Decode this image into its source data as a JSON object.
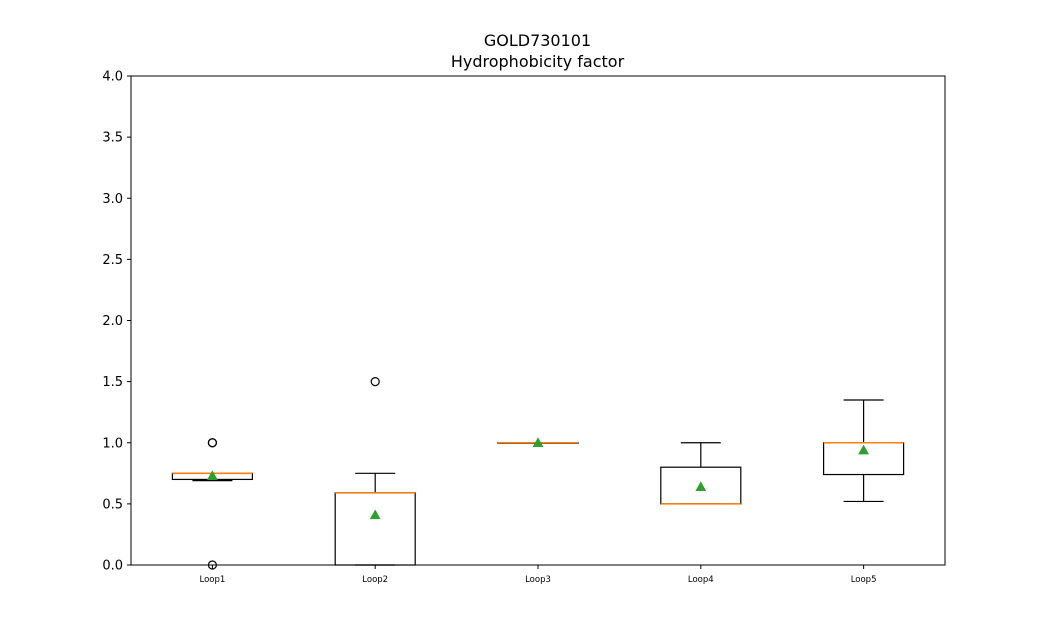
{
  "chart_data": {
    "type": "box",
    "title": "GOLD730101",
    "subtitle": "Hydrophobicity factor",
    "xlabel": "",
    "ylabel": "",
    "ylim": [
      0,
      4.0
    ],
    "yticks": [
      "0.0",
      "0.5",
      "1.0",
      "1.5",
      "2.0",
      "2.5",
      "3.0",
      "3.5",
      "4.0"
    ],
    "categories": [
      "Loop1",
      "Loop2",
      "Loop3",
      "Loop4",
      "Loop5"
    ],
    "boxes": [
      {
        "name": "Loop1",
        "whislo": 0.69,
        "q1": 0.7,
        "med": 0.75,
        "q3": 0.75,
        "whishi": 0.75,
        "mean": 0.73,
        "fliers": [
          1.0,
          1.0,
          0.0
        ]
      },
      {
        "name": "Loop2",
        "whislo": 0.0,
        "q1": 0.0,
        "med": 0.59,
        "q3": 0.59,
        "whishi": 0.75,
        "mean": 0.41,
        "fliers": [
          1.5
        ]
      },
      {
        "name": "Loop3",
        "whislo": 1.0,
        "q1": 1.0,
        "med": 1.0,
        "q3": 1.0,
        "whishi": 1.0,
        "mean": 1.0,
        "fliers": []
      },
      {
        "name": "Loop4",
        "whislo": 0.5,
        "q1": 0.5,
        "med": 0.5,
        "q3": 0.8,
        "whishi": 1.0,
        "mean": 0.64,
        "fliers": []
      },
      {
        "name": "Loop5",
        "whislo": 0.52,
        "q1": 0.74,
        "med": 1.0,
        "q3": 1.0,
        "whishi": 1.35,
        "mean": 0.94,
        "fliers": []
      }
    ],
    "grid": false,
    "colors": {
      "box": "#000000",
      "median": "#ff7f0e",
      "mean": "#2ca02c",
      "flier": "#000000"
    }
  }
}
